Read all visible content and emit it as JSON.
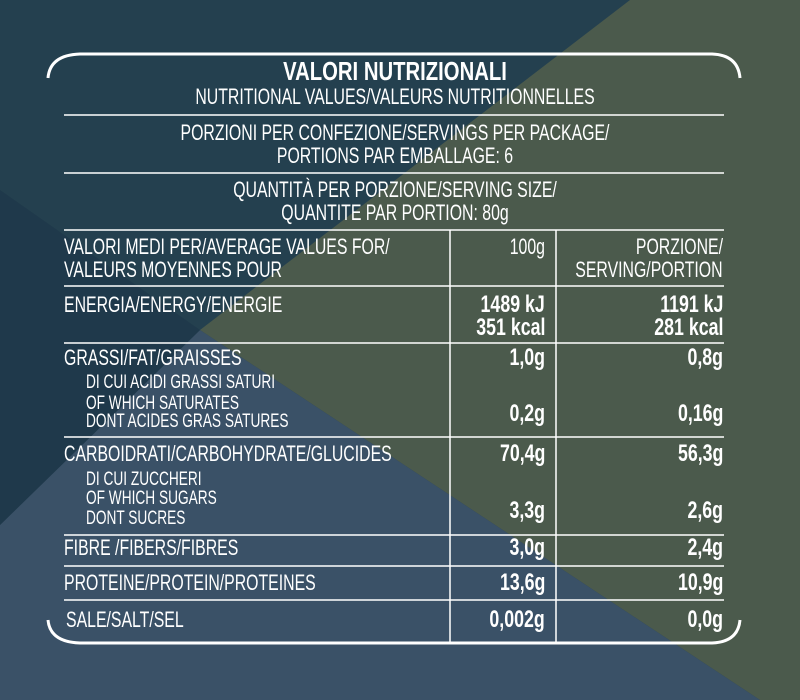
{
  "colors": {
    "background_teal": "#24404f",
    "olive": "#4b5a4c",
    "blue_gray": "#3a5167",
    "navy": "#1f394b",
    "text": "#ffffff"
  },
  "header": {
    "title": "VALORI NUTRIZIONALI",
    "subtitle": "NUTRITIONAL VALUES/VALEURS NUTRITIONNELLES",
    "servings_line1": "PORZIONI PER CONFEZIONE/SERVINGS PER PACKAGE/",
    "servings_line2": "PORTIONS PAR EMBALLAGE: 6",
    "serving_size_line1": "QUANTITÀ PER PORZIONE/SERVING SIZE/",
    "serving_size_line2": "QUANTITE PAR PORTION: 80g"
  },
  "table": {
    "head": {
      "label_line1": "VALORI MEDI PER/AVERAGE VALUES FOR/",
      "label_line2": "VALEURS MOYENNES POUR",
      "col1": "100g",
      "col2_line1": "PORZIONE/",
      "col2_line2": "SERVING/PORTION"
    },
    "energy": {
      "label": "ENERGIA/ENERGY/ENERGIE",
      "col1_kj": "1489 kJ",
      "col1_kcal": "351 kcal",
      "col2_kj": "1191 kJ",
      "col2_kcal": "281 kcal"
    },
    "fat": {
      "label": "GRASSI/FAT/GRAISSES",
      "col1": "1,0g",
      "col2": "0,8g",
      "sub_line1": "DI CUI ACIDI GRASSI SATURI",
      "sub_line2": "OF WHICH SATURATES",
      "sub_line3": "DONT ACIDES GRAS SATURES",
      "sub_col1": "0,2g",
      "sub_col2": "0,16g"
    },
    "carbs": {
      "label": "CARBOIDRATI/CARBOHYDRATE/GLUCIDES",
      "col1": "70,4g",
      "col2": "56,3g",
      "sub_line1": "DI CUI ZUCCHERI",
      "sub_line2": "OF WHICH SUGARS",
      "sub_line3": "DONT SUCRES",
      "sub_col1": "3,3g",
      "sub_col2": "2,6g"
    },
    "fibre": {
      "label": "FIBRE /FIBERS/FIBRES",
      "col1": "3,0g",
      "col2": "2,4g"
    },
    "protein": {
      "label": "PROTEINE/PROTEIN/PROTEINES",
      "col1": "13,6g",
      "col2": "10,9g"
    },
    "salt": {
      "label": "SALE/SALT/SEL",
      "col1": "0,002g",
      "col2": "0,0g"
    }
  }
}
